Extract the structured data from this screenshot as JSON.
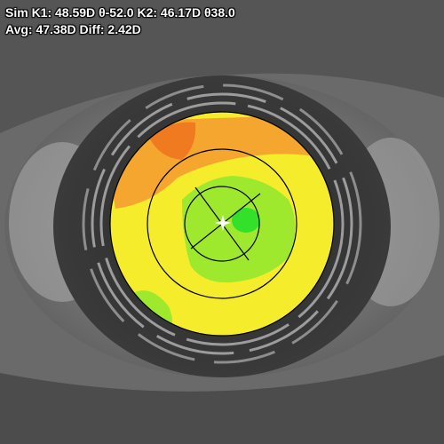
{
  "readout": {
    "line1": {
      "k1_label": "Sim K1:",
      "k1_value": "48.59D",
      "k1_axis": "-52.0",
      "k2_label": "K2:",
      "k2_value": "46.17D",
      "k2_axis": "38.0"
    },
    "line2": {
      "avg_label": "Avg:",
      "avg_value": "47.38D",
      "diff_label": "Diff:",
      "diff_value": "2.42D"
    },
    "axis_symbol": "θ"
  },
  "map": {
    "colors": {
      "steep": "#f07a1f",
      "orange": "#f4a62e",
      "yellow": "#f5ec2c",
      "light_green": "#9ee92e",
      "green": "#33e02a",
      "background_tissue": "#6f6f6f",
      "iris": "#2e2e2e",
      "sclera_light": "#a6a6a6"
    }
  },
  "icons": {
    "center_marker": "crosshair-star-icon"
  }
}
